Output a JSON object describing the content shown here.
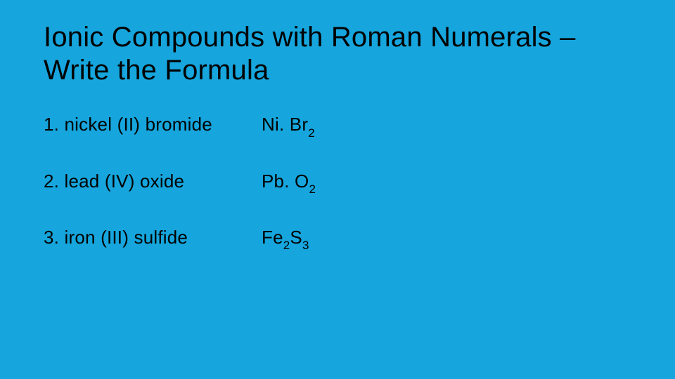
{
  "slide": {
    "background_color": "#16a6dd",
    "text_color": "#000000",
    "title_fontsize": 40,
    "title_fontweight": 300,
    "body_fontsize": 26,
    "subscript_fontsize": 17,
    "title_line1": "Ionic Compounds with Roman Numerals –",
    "title_line2": "Write the Formula",
    "items": [
      {
        "question": "1.  nickel (II) bromide",
        "formula_parts": [
          {
            "t": "Ni. Br",
            "sub": false
          },
          {
            "t": "2",
            "sub": true
          }
        ]
      },
      {
        "question": "2.  lead (IV) oxide",
        "formula_parts": [
          {
            "t": "Pb. O",
            "sub": false
          },
          {
            "t": "2",
            "sub": true
          }
        ]
      },
      {
        "question": "3.  iron (III) sulfide",
        "formula_parts": [
          {
            "t": "Fe",
            "sub": false
          },
          {
            "t": "2",
            "sub": true
          },
          {
            "t": "S",
            "sub": false
          },
          {
            "t": "3",
            "sub": true
          }
        ]
      }
    ]
  }
}
